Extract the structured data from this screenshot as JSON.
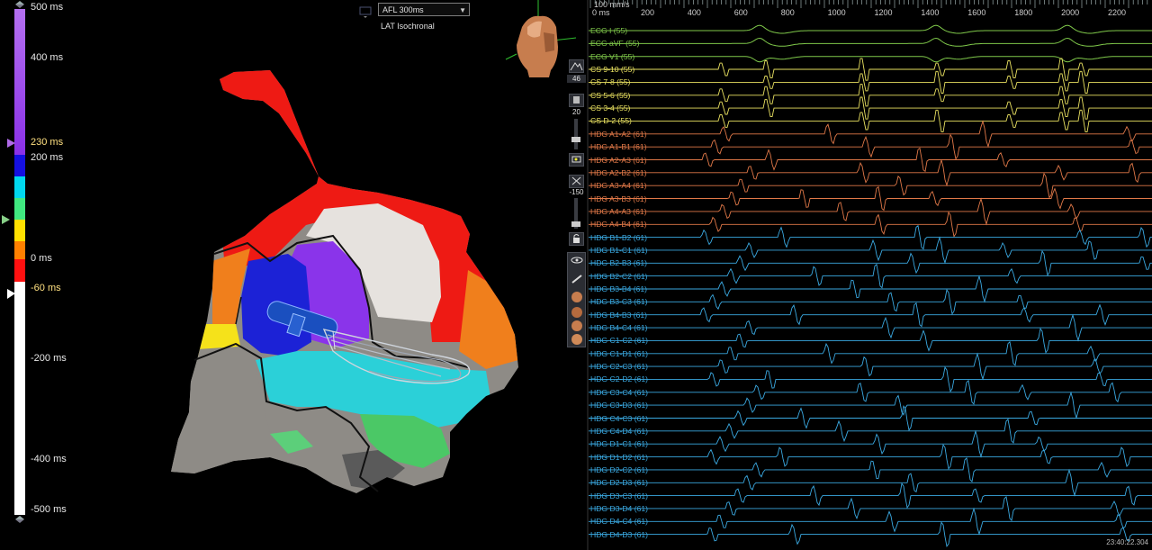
{
  "left_panel": {
    "map_mode": "AFL 300ms",
    "map_type": "LAT Isochronal",
    "color_scale": {
      "labels": [
        {
          "text": "500 ms",
          "y": 9,
          "hl": false
        },
        {
          "text": "400 ms",
          "y": 65,
          "hl": false
        },
        {
          "text": "230 ms",
          "y": 159,
          "hl": true
        },
        {
          "text": "200 ms",
          "y": 176,
          "hl": false
        },
        {
          "text": "0 ms",
          "y": 288,
          "hl": false
        },
        {
          "text": "-60 ms",
          "y": 321,
          "hl": true
        },
        {
          "text": "-200 ms",
          "y": 399,
          "hl": false
        },
        {
          "text": "-400 ms",
          "y": 511,
          "hl": false
        },
        {
          "text": "-500 ms",
          "y": 567,
          "hl": false
        }
      ],
      "colors": {
        "purple": "#9b3ef0",
        "blue": "#1410e0",
        "cyan": "#00d8ef",
        "green": "#40e880",
        "yellow": "#ffe000",
        "orange": "#ff8000",
        "red": "#ff1010",
        "white": "#ffffff"
      }
    },
    "toolbar": {
      "value1": "46",
      "value2": "20",
      "value3": "-150"
    }
  },
  "right_panel": {
    "speed_label": "100 mm/s",
    "time_axis": {
      "start_label": "0 ms",
      "ticks": [
        "200",
        "400",
        "600",
        "800",
        "1000",
        "1200",
        "1400",
        "1600",
        "1800",
        "2000",
        "2200"
      ]
    },
    "channels": [
      {
        "label": "ECG I (55)",
        "group": "ECG"
      },
      {
        "label": "ECG aVF (55)",
        "group": "ECG"
      },
      {
        "label": "ECG V1 (55)",
        "group": "ECG"
      },
      {
        "label": "CS  9-10 (55)",
        "group": "CS"
      },
      {
        "label": "CS  7-8 (55)",
        "group": "CS"
      },
      {
        "label": "CS  5-6 (55)",
        "group": "CS"
      },
      {
        "label": "CS  3-4 (55)",
        "group": "CS"
      },
      {
        "label": "CS  D-2 (55)",
        "group": "CS"
      },
      {
        "label": "HDG  A1-A2 (61)",
        "group": "HDGA"
      },
      {
        "label": "HDG  A1-B1 (61)",
        "group": "HDGA"
      },
      {
        "label": "HDG  A2-A3 (61)",
        "group": "HDGA"
      },
      {
        "label": "HDG  A2-B2 (61)",
        "group": "HDGA"
      },
      {
        "label": "HDG  A3-A4 (61)",
        "group": "HDGA"
      },
      {
        "label": "HDG  A3-B3 (61)",
        "group": "HDGA"
      },
      {
        "label": "HDG  A4-A3 (61)",
        "group": "HDGA"
      },
      {
        "label": "HDG  A4-B4 (61)",
        "group": "HDGA"
      },
      {
        "label": "HDG  B1-B2 (61)",
        "group": "HDGB"
      },
      {
        "label": "HDG  B1-C1 (61)",
        "group": "HDGB"
      },
      {
        "label": "HDG  B2-B3 (61)",
        "group": "HDGB"
      },
      {
        "label": "HDG  B2-C2 (61)",
        "group": "HDGB"
      },
      {
        "label": "HDG  B3-B4 (61)",
        "group": "HDGB"
      },
      {
        "label": "HDG  B3-C3 (61)",
        "group": "HDGB"
      },
      {
        "label": "HDG  B4-B3 (61)",
        "group": "HDGB"
      },
      {
        "label": "HDG  B4-C4 (61)",
        "group": "HDGB"
      },
      {
        "label": "HDG  C1-C2 (61)",
        "group": "HDGB"
      },
      {
        "label": "HDG  C1-D1 (61)",
        "group": "HDGB"
      },
      {
        "label": "HDG  C2-C3 (61)",
        "group": "HDGB"
      },
      {
        "label": "HDG  C2-D2 (61)",
        "group": "HDGB"
      },
      {
        "label": "HDG  C3-C4 (61)",
        "group": "HDGB"
      },
      {
        "label": "HDG  C3-D3 (61)",
        "group": "HDGB"
      },
      {
        "label": "HDG  C4-C3 (61)",
        "group": "HDGB"
      },
      {
        "label": "HDG  C4-D4 (61)",
        "group": "HDGB"
      },
      {
        "label": "HDG  D1-C1 (61)",
        "group": "HDGB"
      },
      {
        "label": "HDG  D1-D2 (61)",
        "group": "HDGB"
      },
      {
        "label": "HDG  D2-C2 (61)",
        "group": "HDGB"
      },
      {
        "label": "HDG  D2-D3 (61)",
        "group": "HDGB"
      },
      {
        "label": "HDG  D3-C3 (61)",
        "group": "HDGB"
      },
      {
        "label": "HDG  D3-D4 (61)",
        "group": "HDGB"
      },
      {
        "label": "HDG  D4-C4 (61)",
        "group": "HDGB"
      },
      {
        "label": "HDG  D4-D3 (61)",
        "group": "HDGB"
      }
    ],
    "group_colors": {
      "ECG": "#7fc84a",
      "CS": "#e8e060",
      "HDGA": "#e07848",
      "HDGB": "#3aa8e0"
    },
    "timestamp": "23:40:22.304"
  }
}
